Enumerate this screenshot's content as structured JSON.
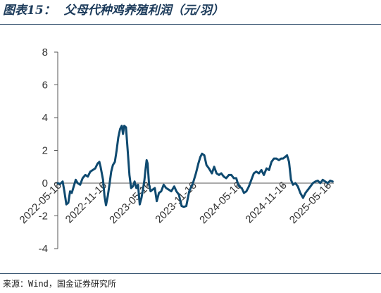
{
  "header": {
    "figure_label": "图表15：",
    "title": "父母代种鸡养殖利润（元/羽）"
  },
  "footer": {
    "source": "来源：Wind，国金证券研究所"
  },
  "colors": {
    "line": "#0f4a70",
    "rule": "#2f4d6b",
    "title": "#1b3a5a"
  },
  "chart_data": {
    "type": "line",
    "title": "父母代种鸡养殖利润（元/羽）",
    "xlabel": "",
    "ylabel": "",
    "ylim": [
      -4,
      8
    ],
    "yticks": [
      -4,
      -2,
      0,
      2,
      4,
      6,
      8
    ],
    "xlim": [
      "2022-05-16",
      "2025-06-10"
    ],
    "xticks": [
      "2022-05-16",
      "2022-11-16",
      "2023-05-16",
      "2023-11-16",
      "2024-05-16",
      "2024-11-16",
      "2025-05-16"
    ],
    "grid": false,
    "legend": "none",
    "series": [
      {
        "points": [
          [
            "2022-05-16",
            0.0
          ],
          [
            "2022-05-26",
            -0.05
          ],
          [
            "2022-06-05",
            0.1
          ],
          [
            "2022-06-12",
            -0.5
          ],
          [
            "2022-06-20",
            -1.3
          ],
          [
            "2022-06-28",
            -1.2
          ],
          [
            "2022-07-05",
            -0.5
          ],
          [
            "2022-07-12",
            -0.6
          ],
          [
            "2022-07-20",
            -0.2
          ],
          [
            "2022-07-28",
            0.2
          ],
          [
            "2022-08-05",
            0.0
          ],
          [
            "2022-08-15",
            -0.1
          ],
          [
            "2022-08-25",
            0.3
          ],
          [
            "2022-09-05",
            0.5
          ],
          [
            "2022-09-15",
            0.4
          ],
          [
            "2022-09-25",
            0.7
          ],
          [
            "2022-10-05",
            0.8
          ],
          [
            "2022-10-15",
            0.9
          ],
          [
            "2022-10-25",
            1.2
          ],
          [
            "2022-11-01",
            1.3
          ],
          [
            "2022-11-06",
            1.0
          ],
          [
            "2022-11-16",
            0.2
          ],
          [
            "2022-11-22",
            -0.8
          ],
          [
            "2022-11-28",
            -1.35
          ],
          [
            "2022-12-05",
            -0.8
          ],
          [
            "2022-12-12",
            -0.1
          ],
          [
            "2022-12-19",
            0.7
          ],
          [
            "2022-12-26",
            1.1
          ],
          [
            "2023-01-03",
            1.3
          ],
          [
            "2023-01-10",
            2.0
          ],
          [
            "2023-01-17",
            2.8
          ],
          [
            "2023-01-24",
            3.3
          ],
          [
            "2023-01-31",
            3.5
          ],
          [
            "2023-02-05",
            3.0
          ],
          [
            "2023-02-10",
            3.5
          ],
          [
            "2023-02-17",
            3.4
          ],
          [
            "2023-02-24",
            2.0
          ],
          [
            "2023-03-03",
            0.5
          ],
          [
            "2023-03-10",
            -0.3
          ],
          [
            "2023-03-17",
            -0.2
          ],
          [
            "2023-03-24",
            0.1
          ],
          [
            "2023-03-31",
            -0.3
          ],
          [
            "2023-04-07",
            -0.1
          ],
          [
            "2023-04-14",
            -1.3
          ],
          [
            "2023-04-21",
            -0.9
          ],
          [
            "2023-04-28",
            -0.3
          ],
          [
            "2023-05-03",
            0.2
          ],
          [
            "2023-05-08",
            0.9
          ],
          [
            "2023-05-12",
            1.4
          ],
          [
            "2023-05-16",
            1.2
          ],
          [
            "2023-05-22",
            -0.1
          ],
          [
            "2023-05-28",
            -0.5
          ],
          [
            "2023-06-05",
            -0.4
          ],
          [
            "2023-06-14",
            -0.3
          ],
          [
            "2023-06-22",
            -1.1
          ],
          [
            "2023-07-01",
            -0.6
          ],
          [
            "2023-07-10",
            -0.5
          ],
          [
            "2023-07-20",
            -0.1
          ],
          [
            "2023-07-30",
            -0.3
          ],
          [
            "2023-08-10",
            -0.4
          ],
          [
            "2023-08-20",
            -0.5
          ],
          [
            "2023-09-01",
            -0.2
          ],
          [
            "2023-09-10",
            -0.5
          ],
          [
            "2023-09-20",
            -0.7
          ],
          [
            "2023-10-01",
            -1.4
          ],
          [
            "2023-10-10",
            -1.45
          ],
          [
            "2023-10-20",
            -1.4
          ],
          [
            "2023-11-01",
            -0.5
          ],
          [
            "2023-11-16",
            0.0
          ],
          [
            "2023-11-28",
            0.6
          ],
          [
            "2023-12-08",
            1.2
          ],
          [
            "2023-12-16",
            1.6
          ],
          [
            "2023-12-23",
            1.8
          ],
          [
            "2024-01-01",
            1.7
          ],
          [
            "2024-01-10",
            1.1
          ],
          [
            "2024-01-20",
            0.9
          ],
          [
            "2024-02-01",
            0.6
          ],
          [
            "2024-02-10",
            1.0
          ],
          [
            "2024-02-20",
            0.6
          ],
          [
            "2024-03-01",
            0.5
          ],
          [
            "2024-03-10",
            0.6
          ],
          [
            "2024-03-20",
            0.4
          ],
          [
            "2024-03-30",
            0.3
          ],
          [
            "2024-04-10",
            0.5
          ],
          [
            "2024-04-20",
            0.5
          ],
          [
            "2024-04-30",
            0.3
          ],
          [
            "2024-05-10",
            0.3
          ],
          [
            "2024-05-16",
            0.0
          ],
          [
            "2024-05-22",
            -0.2
          ],
          [
            "2024-06-01",
            -0.3
          ],
          [
            "2024-06-10",
            -0.6
          ],
          [
            "2024-06-20",
            -0.5
          ],
          [
            "2024-06-30",
            -0.2
          ],
          [
            "2024-07-10",
            0.2
          ],
          [
            "2024-07-20",
            0.6
          ],
          [
            "2024-07-30",
            0.7
          ],
          [
            "2024-08-10",
            0.6
          ],
          [
            "2024-08-20",
            0.8
          ],
          [
            "2024-08-30",
            0.5
          ],
          [
            "2024-09-10",
            0.9
          ],
          [
            "2024-09-20",
            0.8
          ],
          [
            "2024-09-30",
            1.3
          ],
          [
            "2024-10-10",
            1.5
          ],
          [
            "2024-10-20",
            1.5
          ],
          [
            "2024-10-30",
            1.4
          ],
          [
            "2024-11-08",
            1.5
          ],
          [
            "2024-11-16",
            1.5
          ],
          [
            "2024-11-24",
            1.6
          ],
          [
            "2024-12-02",
            1.7
          ],
          [
            "2024-12-10",
            1.3
          ],
          [
            "2024-12-18",
            0.2
          ],
          [
            "2024-12-26",
            -0.1
          ],
          [
            "2025-01-05",
            0.0
          ],
          [
            "2025-01-15",
            -0.2
          ],
          [
            "2025-01-25",
            -0.6
          ],
          [
            "2025-02-05",
            -0.9
          ],
          [
            "2025-02-15",
            -0.6
          ],
          [
            "2025-02-25",
            -0.4
          ],
          [
            "2025-03-07",
            -0.2
          ],
          [
            "2025-03-17",
            0.0
          ],
          [
            "2025-03-27",
            0.1
          ],
          [
            "2025-04-06",
            0.15
          ],
          [
            "2025-04-16",
            0.0
          ],
          [
            "2025-04-26",
            0.2
          ],
          [
            "2025-05-06",
            0.1
          ],
          [
            "2025-05-16",
            0.0
          ],
          [
            "2025-05-26",
            0.15
          ],
          [
            "2025-06-05",
            0.1
          ]
        ]
      }
    ]
  }
}
